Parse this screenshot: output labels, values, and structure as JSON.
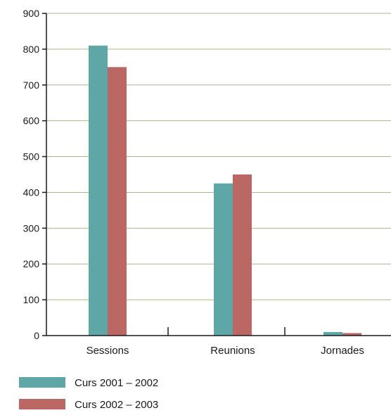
{
  "chart_data": {
    "type": "bar",
    "title": "",
    "xlabel": "",
    "ylabel": "",
    "categories": [
      "Sessions",
      "Reunions",
      "Jornades"
    ],
    "series": [
      {
        "name": "Curs 2001 – 2002",
        "values": [
          810,
          425,
          10
        ],
        "color": "#5fa6a6"
      },
      {
        "name": "Curs 2002 – 2003",
        "values": [
          750,
          450,
          7
        ],
        "color": "#bb6764"
      }
    ],
    "ylim": [
      0,
      900
    ],
    "yticks": [
      0,
      100,
      200,
      300,
      400,
      500,
      600,
      700,
      800,
      900
    ],
    "grid": true,
    "legend": "bottom-left",
    "gridColor": "#b4b48c",
    "axisColor": "#1a1a1a"
  }
}
